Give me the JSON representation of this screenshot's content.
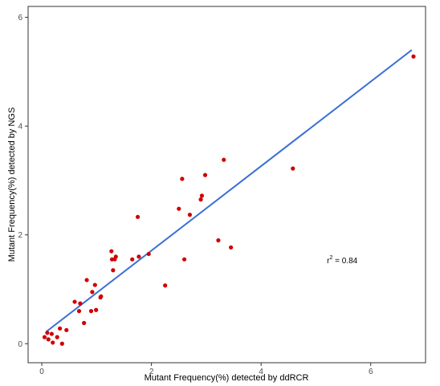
{
  "chart_data": {
    "type": "scatter",
    "title": "",
    "xlabel": "Mutant Frequency(%) detected by ddRCR",
    "ylabel": "Mutant Frequency(%) detected by NGS",
    "xlim": [
      -0.25,
      7.0
    ],
    "ylim": [
      -0.35,
      6.2
    ],
    "xticks": [
      0,
      2,
      4,
      6
    ],
    "yticks": [
      0,
      2,
      4,
      6
    ],
    "grid": false,
    "legend": "none",
    "point_color": "#d10000",
    "line_color": "#3a6fd6",
    "points": [
      [
        0.05,
        0.12
      ],
      [
        0.1,
        0.2
      ],
      [
        0.12,
        0.08
      ],
      [
        0.18,
        0.18
      ],
      [
        0.2,
        0.02
      ],
      [
        0.28,
        0.12
      ],
      [
        0.33,
        0.28
      ],
      [
        0.37,
        0.0
      ],
      [
        0.45,
        0.25
      ],
      [
        0.6,
        0.77
      ],
      [
        0.68,
        0.6
      ],
      [
        0.7,
        0.74
      ],
      [
        0.77,
        0.38
      ],
      [
        0.82,
        1.17
      ],
      [
        0.9,
        0.6
      ],
      [
        0.92,
        0.95
      ],
      [
        0.97,
        1.08
      ],
      [
        0.99,
        0.62
      ],
      [
        1.07,
        0.85
      ],
      [
        1.08,
        0.87
      ],
      [
        1.27,
        1.7
      ],
      [
        1.28,
        1.55
      ],
      [
        1.3,
        1.35
      ],
      [
        1.33,
        1.55
      ],
      [
        1.35,
        1.6
      ],
      [
        1.65,
        1.55
      ],
      [
        1.75,
        2.33
      ],
      [
        1.77,
        1.6
      ],
      [
        1.95,
        1.65
      ],
      [
        2.25,
        1.07
      ],
      [
        2.5,
        2.48
      ],
      [
        2.56,
        3.03
      ],
      [
        2.6,
        1.55
      ],
      [
        2.7,
        2.37
      ],
      [
        2.9,
        2.65
      ],
      [
        2.92,
        2.72
      ],
      [
        2.98,
        3.1
      ],
      [
        3.22,
        1.9
      ],
      [
        3.32,
        3.38
      ],
      [
        3.45,
        1.77
      ],
      [
        4.58,
        3.22
      ],
      [
        6.78,
        5.28
      ]
    ],
    "fit_line": {
      "x": [
        0.08,
        6.75
      ],
      "y": [
        0.22,
        5.4
      ]
    },
    "annotation": {
      "text": "r",
      "superscript": "2",
      "value_text": " = 0.84",
      "x": 5.2,
      "y": 1.48
    }
  }
}
